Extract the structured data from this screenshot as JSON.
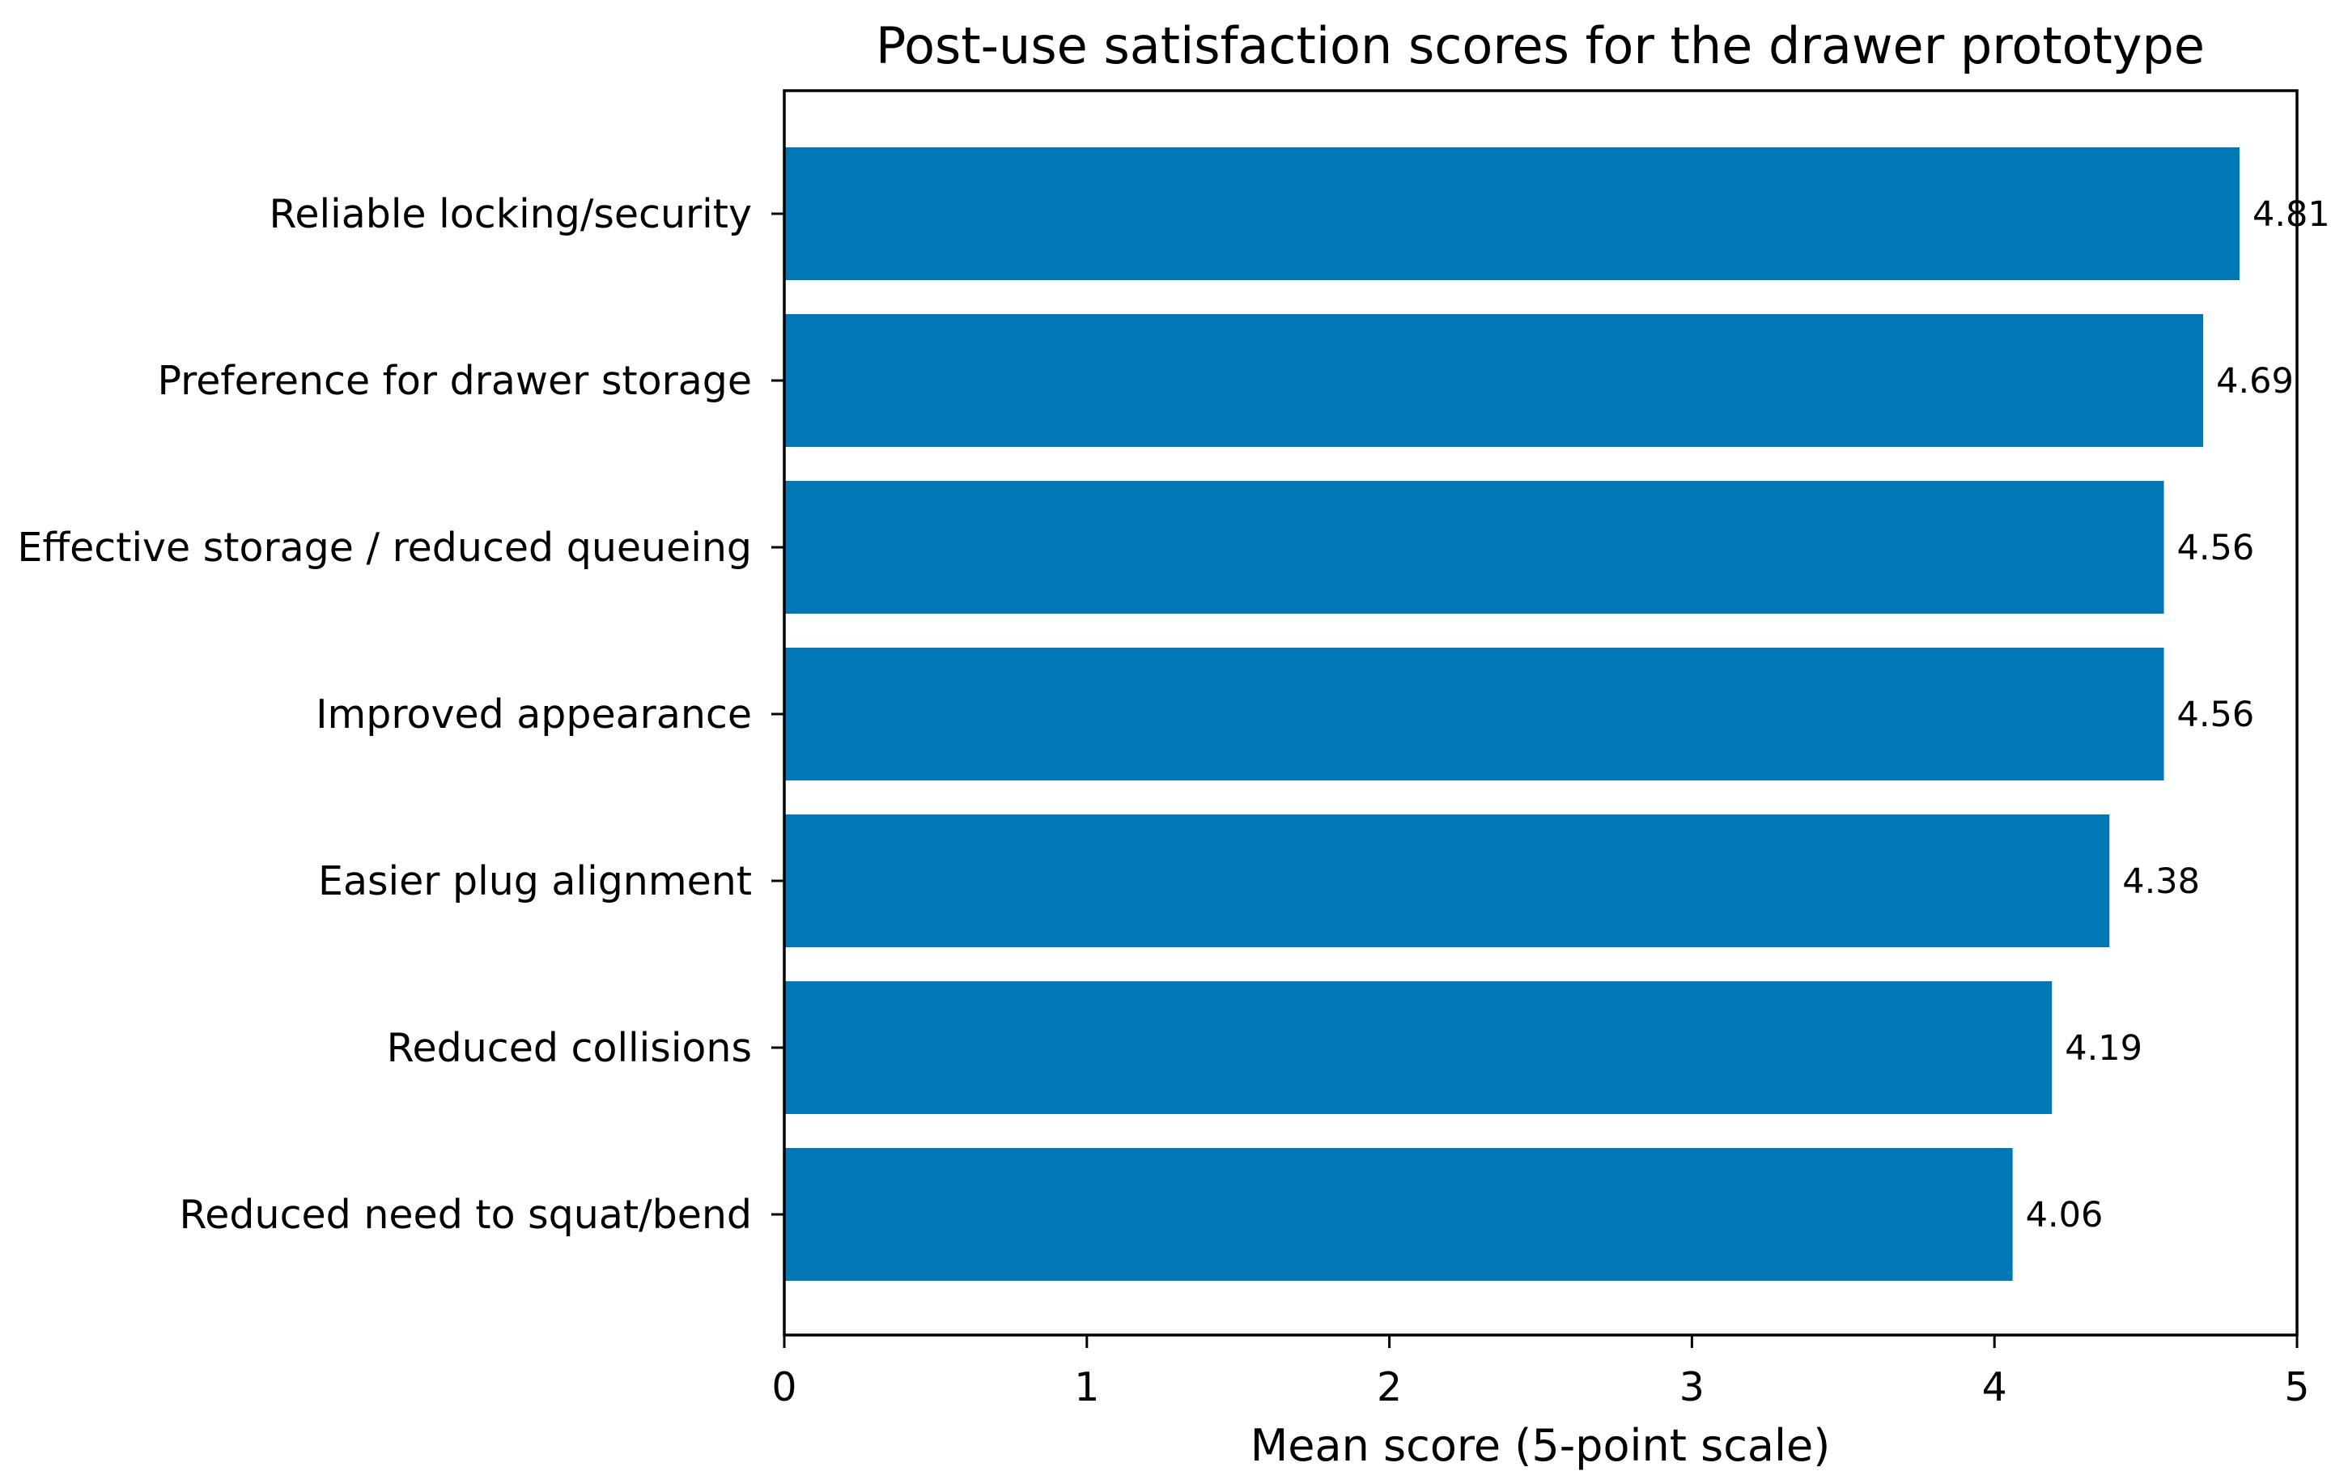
{
  "chart_data": {
    "type": "bar",
    "orientation": "horizontal",
    "title": "Post-use satisfaction scores for the drawer prototype",
    "xlabel": "Mean score (5-point scale)",
    "ylabel": "",
    "xlim": [
      0,
      5
    ],
    "x_ticks": [
      "0",
      "1",
      "2",
      "3",
      "4",
      "5"
    ],
    "grid": false,
    "bar_color": "#0077b6",
    "categories": [
      "Reliable locking/security",
      "Preference for drawer storage",
      "Effective storage / reduced queueing",
      "Improved appearance",
      "Easier plug alignment",
      "Reduced collisions",
      "Reduced need to squat/bend"
    ],
    "values": [
      4.81,
      4.69,
      4.56,
      4.56,
      4.38,
      4.19,
      4.06
    ],
    "value_labels": [
      "4.81",
      "4.69",
      "4.56",
      "4.56",
      "4.38",
      "4.19",
      "4.06"
    ]
  }
}
